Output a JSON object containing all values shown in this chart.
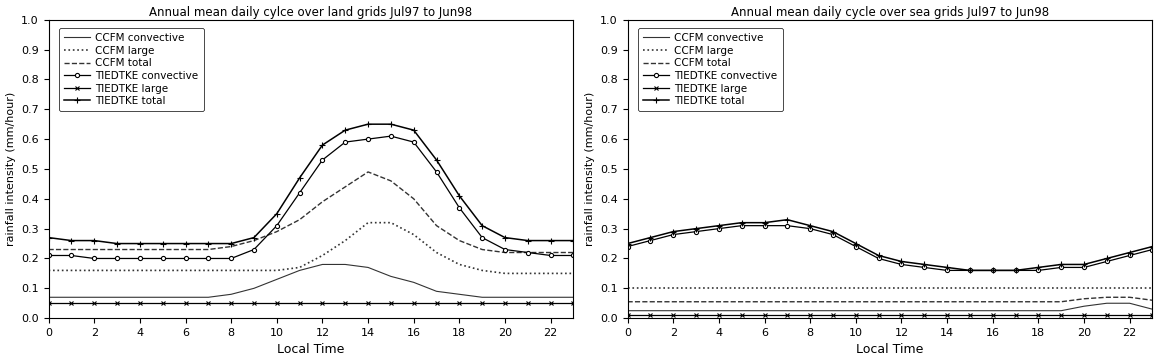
{
  "title_land": "Annual mean daily cylce over land grids Jul97 to Jun98",
  "title_sea": "Annual mean daily cycle over sea grids Jul97 to Jun98",
  "xlabel": "Local Time",
  "ylabel": "rainfall intensity (mm/hour)",
  "xlim": [
    0,
    23
  ],
  "ylim": [
    0,
    1.0
  ],
  "xticks": [
    0,
    2,
    4,
    6,
    8,
    10,
    12,
    14,
    16,
    18,
    20,
    22
  ],
  "yticks": [
    0,
    0.1,
    0.2,
    0.3,
    0.4,
    0.5,
    0.6,
    0.7,
    0.8,
    0.9,
    1.0
  ],
  "hours": [
    0,
    1,
    2,
    3,
    4,
    5,
    6,
    7,
    8,
    9,
    10,
    11,
    12,
    13,
    14,
    15,
    16,
    17,
    18,
    19,
    20,
    21,
    22,
    23
  ],
  "land": {
    "ccfm_conv": [
      0.07,
      0.07,
      0.07,
      0.07,
      0.07,
      0.07,
      0.07,
      0.07,
      0.08,
      0.1,
      0.13,
      0.16,
      0.18,
      0.18,
      0.17,
      0.14,
      0.12,
      0.09,
      0.08,
      0.07,
      0.07,
      0.07,
      0.07,
      0.07
    ],
    "ccfm_large": [
      0.16,
      0.16,
      0.16,
      0.16,
      0.16,
      0.16,
      0.16,
      0.16,
      0.16,
      0.16,
      0.16,
      0.17,
      0.21,
      0.26,
      0.32,
      0.32,
      0.28,
      0.22,
      0.18,
      0.16,
      0.15,
      0.15,
      0.15,
      0.15
    ],
    "ccfm_total": [
      0.23,
      0.23,
      0.23,
      0.23,
      0.23,
      0.23,
      0.23,
      0.23,
      0.24,
      0.26,
      0.29,
      0.33,
      0.39,
      0.44,
      0.49,
      0.46,
      0.4,
      0.31,
      0.26,
      0.23,
      0.22,
      0.22,
      0.22,
      0.22
    ],
    "tied_conv": [
      0.21,
      0.21,
      0.2,
      0.2,
      0.2,
      0.2,
      0.2,
      0.2,
      0.2,
      0.23,
      0.31,
      0.42,
      0.53,
      0.59,
      0.6,
      0.61,
      0.59,
      0.49,
      0.37,
      0.27,
      0.23,
      0.22,
      0.21,
      0.21
    ],
    "tied_large": [
      0.05,
      0.05,
      0.05,
      0.05,
      0.05,
      0.05,
      0.05,
      0.05,
      0.05,
      0.05,
      0.05,
      0.05,
      0.05,
      0.05,
      0.05,
      0.05,
      0.05,
      0.05,
      0.05,
      0.05,
      0.05,
      0.05,
      0.05,
      0.05
    ],
    "tied_total": [
      0.27,
      0.26,
      0.26,
      0.25,
      0.25,
      0.25,
      0.25,
      0.25,
      0.25,
      0.27,
      0.35,
      0.47,
      0.58,
      0.63,
      0.65,
      0.65,
      0.63,
      0.53,
      0.41,
      0.31,
      0.27,
      0.26,
      0.26,
      0.26
    ]
  },
  "sea": {
    "ccfm_conv": [
      0.025,
      0.025,
      0.025,
      0.025,
      0.025,
      0.025,
      0.025,
      0.025,
      0.025,
      0.025,
      0.025,
      0.025,
      0.025,
      0.025,
      0.025,
      0.025,
      0.025,
      0.025,
      0.025,
      0.025,
      0.04,
      0.05,
      0.05,
      0.03
    ],
    "ccfm_large": [
      0.1,
      0.1,
      0.1,
      0.1,
      0.1,
      0.1,
      0.1,
      0.1,
      0.1,
      0.1,
      0.1,
      0.1,
      0.1,
      0.1,
      0.1,
      0.1,
      0.1,
      0.1,
      0.1,
      0.1,
      0.1,
      0.1,
      0.1,
      0.1
    ],
    "ccfm_total": [
      0.055,
      0.055,
      0.055,
      0.055,
      0.055,
      0.055,
      0.055,
      0.055,
      0.055,
      0.055,
      0.055,
      0.055,
      0.055,
      0.055,
      0.055,
      0.055,
      0.055,
      0.055,
      0.055,
      0.055,
      0.065,
      0.07,
      0.07,
      0.06
    ],
    "tied_conv": [
      0.24,
      0.26,
      0.28,
      0.29,
      0.3,
      0.31,
      0.31,
      0.31,
      0.3,
      0.28,
      0.24,
      0.2,
      0.18,
      0.17,
      0.16,
      0.16,
      0.16,
      0.16,
      0.16,
      0.17,
      0.17,
      0.19,
      0.21,
      0.23
    ],
    "tied_large": [
      0.01,
      0.01,
      0.01,
      0.01,
      0.01,
      0.01,
      0.01,
      0.01,
      0.01,
      0.01,
      0.01,
      0.01,
      0.01,
      0.01,
      0.01,
      0.01,
      0.01,
      0.01,
      0.01,
      0.01,
      0.01,
      0.01,
      0.01,
      0.01
    ],
    "tied_total": [
      0.25,
      0.27,
      0.29,
      0.3,
      0.31,
      0.32,
      0.32,
      0.33,
      0.31,
      0.29,
      0.25,
      0.21,
      0.19,
      0.18,
      0.17,
      0.16,
      0.16,
      0.16,
      0.17,
      0.18,
      0.18,
      0.2,
      0.22,
      0.24
    ]
  }
}
